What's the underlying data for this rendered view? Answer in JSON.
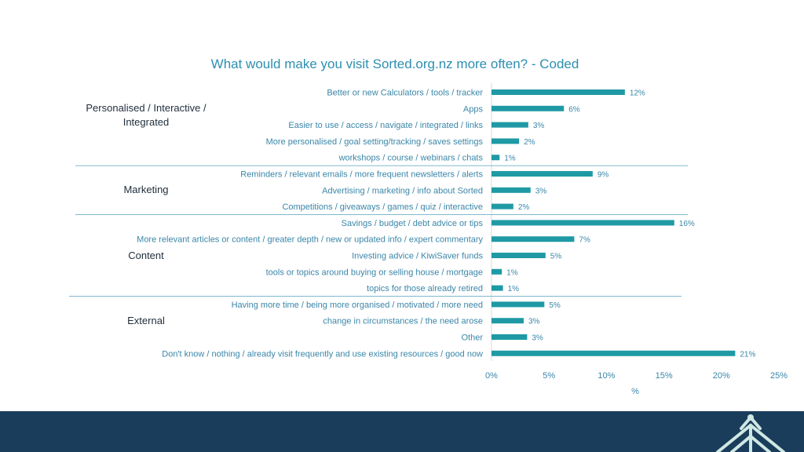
{
  "chart_data": {
    "type": "bar",
    "orientation": "horizontal",
    "title": "What would make you visit Sorted.org.nz more often? - Coded",
    "xlabel": "%",
    "ylabel": "",
    "xlim": [
      0,
      25
    ],
    "x_ticks": [
      "0%",
      "5%",
      "10%",
      "15%",
      "20%",
      "25%"
    ],
    "bar_color": "#1f9aa5",
    "groups": [
      {
        "label": "Personalised / Interactive / Integrated",
        "lines": [
          "Personalised / Interactive /",
          "Integrated"
        ],
        "first": 0,
        "last": 4
      },
      {
        "label": "Marketing",
        "lines": [
          "Marketing"
        ],
        "first": 5,
        "last": 7
      },
      {
        "label": "Content",
        "lines": [
          "Content"
        ],
        "first": 8,
        "last": 12
      },
      {
        "label": "External",
        "lines": [
          "External"
        ],
        "first": 13,
        "last": 15
      }
    ],
    "categories": [
      "Better or new Calculators / tools / tracker",
      "Apps",
      "Easier to use / access / navigate / integrated / links",
      "More personalised / goal setting/tracking / saves settings",
      "workshops / course / webinars / chats",
      "Reminders / relevant emails / more frequent newsletters / alerts",
      "Advertising / marketing / info about Sorted",
      "Competitions / giveaways / games / quiz / interactive",
      "Savings / budget / debt advice or tips",
      "More relevant articles or content / greater depth / new or updated info / expert commentary",
      "Investing advice / KiwiSaver funds",
      "tools or topics around buying or selling house / mortgage",
      "topics for those already retired",
      "Having more time / being more organised / motivated / more need",
      "change in circumstances / the need arose",
      "Other",
      "Don't know / nothing / already visit frequently and use existing resources / good now"
    ],
    "values": [
      11.6,
      6.3,
      3.2,
      2.4,
      0.7,
      8.8,
      3.4,
      1.9,
      15.9,
      7.2,
      4.7,
      0.9,
      1.0,
      4.6,
      2.8,
      3.1,
      21.2
    ],
    "value_labels": [
      "12%",
      "6%",
      "3%",
      "2%",
      "1%",
      "9%",
      "3%",
      "2%",
      "16%",
      "7%",
      "5%",
      "1%",
      "1%",
      "5%",
      "3%",
      "3%",
      "21%"
    ]
  }
}
